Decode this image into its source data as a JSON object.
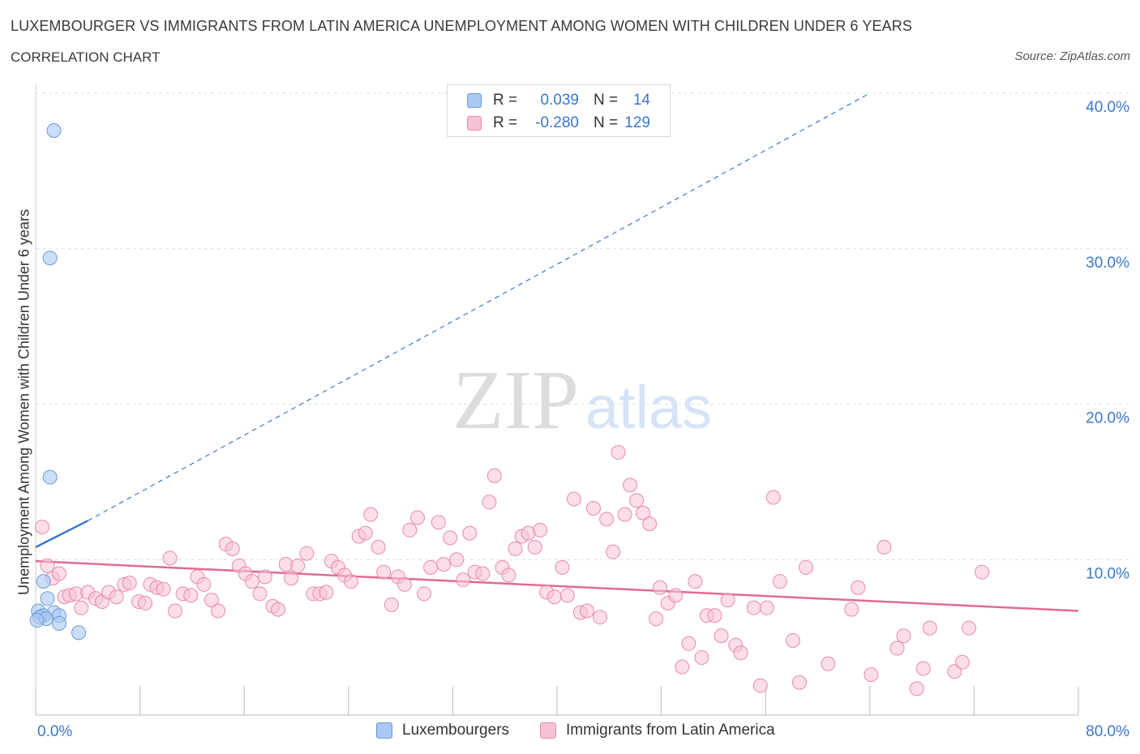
{
  "header": {
    "title": "LUXEMBOURGER VS IMMIGRANTS FROM LATIN AMERICA UNEMPLOYMENT AMONG WOMEN WITH CHILDREN UNDER 6 YEARS",
    "subtitle": "CORRELATION CHART",
    "source": "Source: ZipAtlas.com"
  },
  "watermark": {
    "zip": "ZIP",
    "atlas": "atlas"
  },
  "legend_top": {
    "rows": [
      {
        "r_label": "R =",
        "r_value": "0.039",
        "n_label": "N =",
        "n_value": "14",
        "color": "#a9c8f3",
        "stroke": "#6b9ad6"
      },
      {
        "r_label": "R =",
        "r_value": "-0.280",
        "n_label": "N =",
        "n_value": "129",
        "color": "#f7c3d3",
        "stroke": "#e88aa8"
      }
    ]
  },
  "legend_bottom": {
    "items": [
      {
        "label": "Luxembourgers",
        "color": "#a9c8f3",
        "stroke": "#6b9ad6"
      },
      {
        "label": "Immigrants from Latin America",
        "color": "#f7c3d3",
        "stroke": "#e88aa8"
      }
    ]
  },
  "chart_data": {
    "type": "scatter",
    "title": "LUXEMBOURGER VS IMMIGRANTS FROM LATIN AMERICA UNEMPLOYMENT AMONG WOMEN WITH CHILDREN UNDER 6 YEARS",
    "xlabel": "",
    "ylabel": "Unemployment Among Women with Children Under 6 years",
    "xlim": [
      0,
      80
    ],
    "ylim": [
      0,
      40
    ],
    "x_ticks_labels": {
      "0": "0.0%",
      "80": "80.0%"
    },
    "y_ticks": [
      10,
      20,
      30,
      40
    ],
    "y_tick_labels": [
      "10.0%",
      "20.0%",
      "30.0%",
      "40.0%"
    ],
    "grid": true,
    "legend_position": "top-center",
    "series": [
      {
        "name": "Luxembourgers",
        "color": "#a9c8f3",
        "stroke": "#6b9ad6",
        "trend": {
          "x": [
            0,
            4
          ],
          "y": [
            10.8,
            12.5
          ],
          "color": "#3a78c9",
          "extended_dashed_to": [
            64,
            40
          ]
        },
        "points": [
          [
            1.4,
            37.6
          ],
          [
            1.1,
            29.4
          ],
          [
            1.1,
            15.3
          ],
          [
            0.6,
            8.6
          ],
          [
            0.9,
            7.5
          ],
          [
            0.2,
            6.7
          ],
          [
            1.4,
            6.6
          ],
          [
            1.8,
            6.4
          ],
          [
            0.6,
            6.4
          ],
          [
            0.3,
            6.3
          ],
          [
            0.8,
            6.2
          ],
          [
            0.1,
            6.1
          ],
          [
            1.8,
            5.9
          ],
          [
            3.3,
            5.3
          ]
        ]
      },
      {
        "name": "Immigrants from Latin America",
        "color": "#f7c3d3",
        "stroke": "#e88aa8",
        "trend": {
          "x": [
            0,
            80
          ],
          "y": [
            9.9,
            6.7
          ],
          "color": "#e06b93"
        },
        "points": [
          [
            0.5,
            12.1
          ],
          [
            0.9,
            9.6
          ],
          [
            1.3,
            8.8
          ],
          [
            1.8,
            9.1
          ],
          [
            2.2,
            7.6
          ],
          [
            2.6,
            7.7
          ],
          [
            3.1,
            7.8
          ],
          [
            3.5,
            6.9
          ],
          [
            4.0,
            7.9
          ],
          [
            4.6,
            7.5
          ],
          [
            5.1,
            7.3
          ],
          [
            5.6,
            7.9
          ],
          [
            6.2,
            7.6
          ],
          [
            6.8,
            8.4
          ],
          [
            7.2,
            8.5
          ],
          [
            7.9,
            7.3
          ],
          [
            8.4,
            7.2
          ],
          [
            8.8,
            8.4
          ],
          [
            9.3,
            8.2
          ],
          [
            9.8,
            8.1
          ],
          [
            10.3,
            10.1
          ],
          [
            10.7,
            6.7
          ],
          [
            11.3,
            7.8
          ],
          [
            11.9,
            7.7
          ],
          [
            12.4,
            8.9
          ],
          [
            12.9,
            8.4
          ],
          [
            13.5,
            7.4
          ],
          [
            14.0,
            6.7
          ],
          [
            14.6,
            11.0
          ],
          [
            15.1,
            10.7
          ],
          [
            15.6,
            9.6
          ],
          [
            16.1,
            9.1
          ],
          [
            16.6,
            8.6
          ],
          [
            17.2,
            7.8
          ],
          [
            17.6,
            8.9
          ],
          [
            18.2,
            7.0
          ],
          [
            18.6,
            6.8
          ],
          [
            19.2,
            9.7
          ],
          [
            19.6,
            8.8
          ],
          [
            20.1,
            9.6
          ],
          [
            20.8,
            10.4
          ],
          [
            21.3,
            7.8
          ],
          [
            21.8,
            7.8
          ],
          [
            22.3,
            7.9
          ],
          [
            22.7,
            9.9
          ],
          [
            23.2,
            9.5
          ],
          [
            23.7,
            9.0
          ],
          [
            24.2,
            8.6
          ],
          [
            24.8,
            11.5
          ],
          [
            25.3,
            11.7
          ],
          [
            25.7,
            12.9
          ],
          [
            26.3,
            10.8
          ],
          [
            26.7,
            9.2
          ],
          [
            27.3,
            7.1
          ],
          [
            27.8,
            8.9
          ],
          [
            28.3,
            8.4
          ],
          [
            28.7,
            11.9
          ],
          [
            29.3,
            12.7
          ],
          [
            29.8,
            7.8
          ],
          [
            30.3,
            9.5
          ],
          [
            30.9,
            12.4
          ],
          [
            31.3,
            9.7
          ],
          [
            31.8,
            11.4
          ],
          [
            32.3,
            10.0
          ],
          [
            32.8,
            8.7
          ],
          [
            33.3,
            11.7
          ],
          [
            33.7,
            9.2
          ],
          [
            34.3,
            9.1
          ],
          [
            34.8,
            13.7
          ],
          [
            35.2,
            15.4
          ],
          [
            35.8,
            9.5
          ],
          [
            36.3,
            9.0
          ],
          [
            36.8,
            10.7
          ],
          [
            37.3,
            11.5
          ],
          [
            37.8,
            11.7
          ],
          [
            38.3,
            10.8
          ],
          [
            38.7,
            11.9
          ],
          [
            39.2,
            7.9
          ],
          [
            39.8,
            7.6
          ],
          [
            40.4,
            9.5
          ],
          [
            40.8,
            7.7
          ],
          [
            41.3,
            13.9
          ],
          [
            41.8,
            6.6
          ],
          [
            42.3,
            6.7
          ],
          [
            42.8,
            13.3
          ],
          [
            43.3,
            6.3
          ],
          [
            43.8,
            12.6
          ],
          [
            44.3,
            10.5
          ],
          [
            44.7,
            16.9
          ],
          [
            45.2,
            12.9
          ],
          [
            45.6,
            14.8
          ],
          [
            46.1,
            13.8
          ],
          [
            46.6,
            13.0
          ],
          [
            47.1,
            12.3
          ],
          [
            47.6,
            6.2
          ],
          [
            47.9,
            8.2
          ],
          [
            48.5,
            7.2
          ],
          [
            49.1,
            7.7
          ],
          [
            49.6,
            3.1
          ],
          [
            50.1,
            4.6
          ],
          [
            50.6,
            8.6
          ],
          [
            51.1,
            3.7
          ],
          [
            51.5,
            6.4
          ],
          [
            52.1,
            6.4
          ],
          [
            52.6,
            5.1
          ],
          [
            53.1,
            7.4
          ],
          [
            53.7,
            4.5
          ],
          [
            54.1,
            4.0
          ],
          [
            55.1,
            6.9
          ],
          [
            55.6,
            1.9
          ],
          [
            56.1,
            6.9
          ],
          [
            56.6,
            14.0
          ],
          [
            57.1,
            8.6
          ],
          [
            58.1,
            4.8
          ],
          [
            58.6,
            2.1
          ],
          [
            59.1,
            9.5
          ],
          [
            60.8,
            3.3
          ],
          [
            62.6,
            6.8
          ],
          [
            63.1,
            8.2
          ],
          [
            64.1,
            2.6
          ],
          [
            65.1,
            10.8
          ],
          [
            66.1,
            4.3
          ],
          [
            66.6,
            5.1
          ],
          [
            67.6,
            1.7
          ],
          [
            68.1,
            3.0
          ],
          [
            68.6,
            5.6
          ],
          [
            70.5,
            2.8
          ],
          [
            71.1,
            3.4
          ],
          [
            71.6,
            5.6
          ],
          [
            72.6,
            9.2
          ]
        ]
      }
    ]
  }
}
